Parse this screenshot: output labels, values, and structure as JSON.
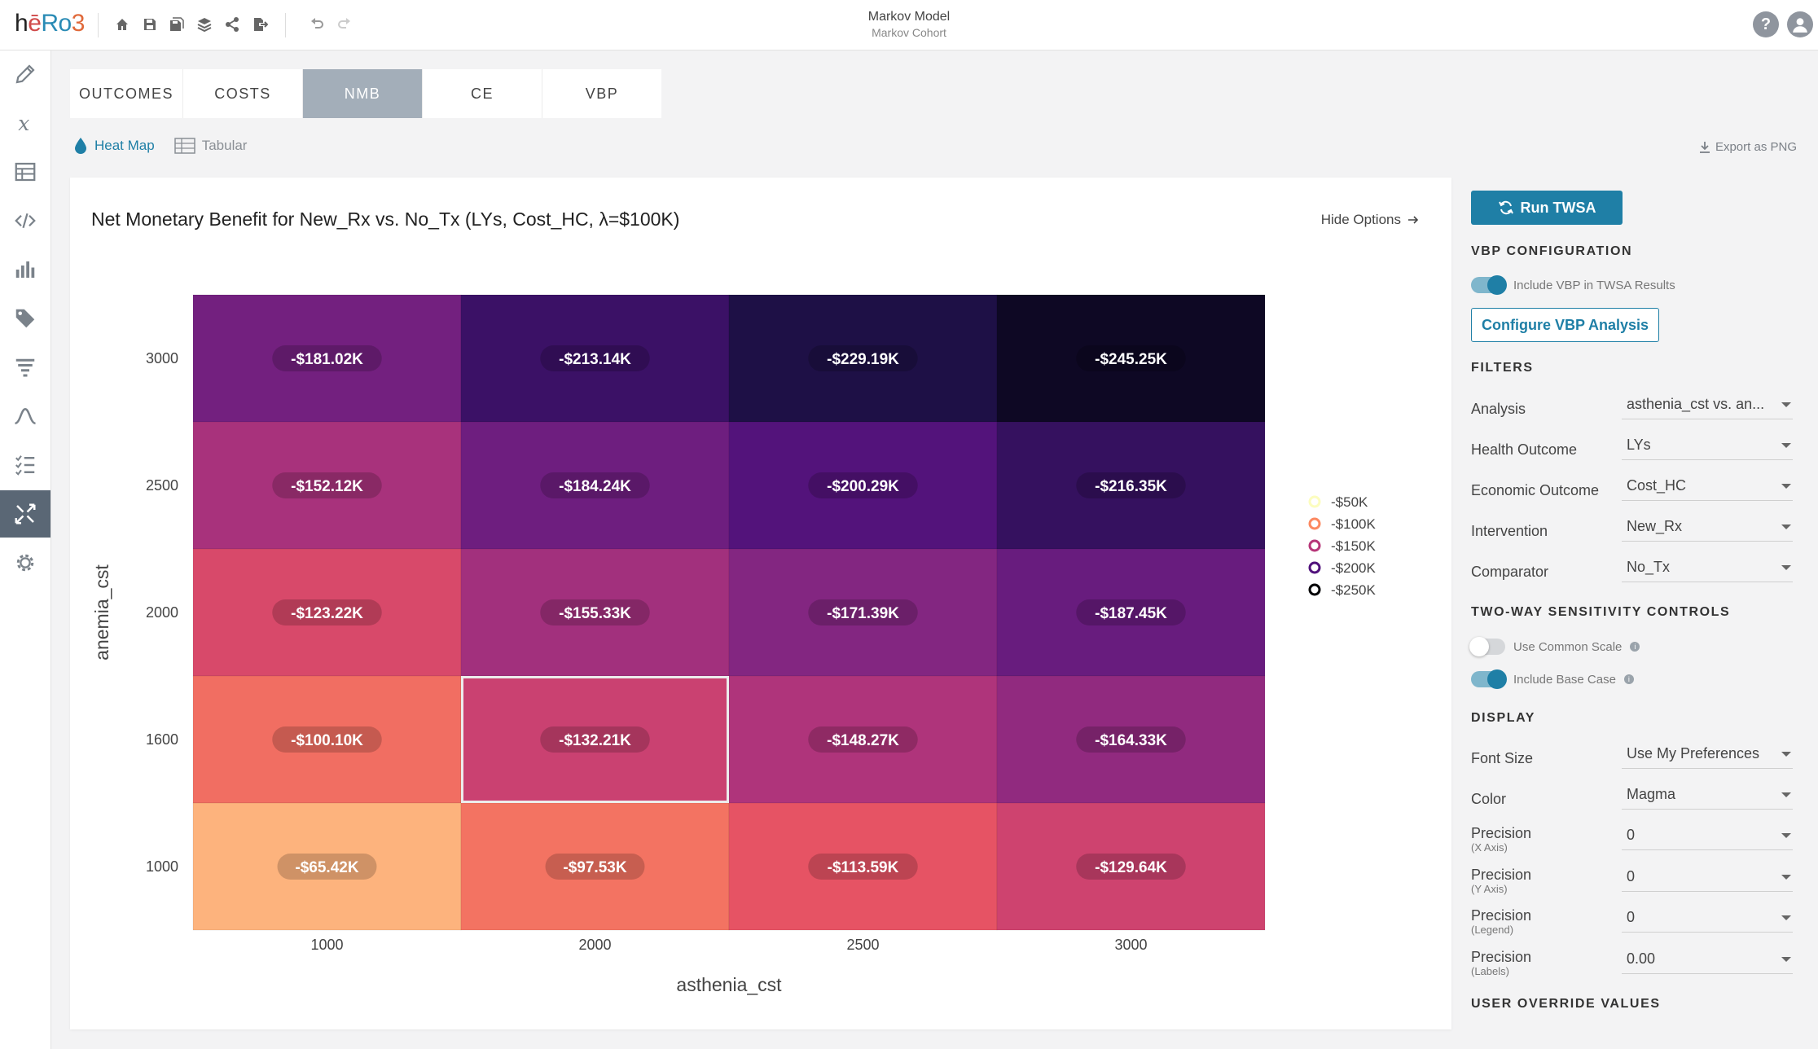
{
  "app": {
    "logo_parts": [
      "h",
      "ē",
      "R",
      "o",
      "3"
    ],
    "doc_title": "Markov Model",
    "doc_subtitle": "Markov Cohort"
  },
  "topbar_icons": [
    "home-icon",
    "save-icon",
    "save-as-icon",
    "layers-icon",
    "share-icon",
    "export-file-icon",
    "undo-icon",
    "redo-icon"
  ],
  "top_right_icons": [
    "help-icon",
    "user-icon"
  ],
  "sidebar_icons": [
    "pencil-icon",
    "variable-x-icon",
    "table-icon",
    "code-icon",
    "bar-chart-icon",
    "tag-icon",
    "filter-funnel-icon",
    "distribution-curve-icon",
    "checklist-icon",
    "sensitivity-arrows-icon",
    "settings-gear-icon"
  ],
  "tabs": [
    {
      "label": "OUTCOMES",
      "active": false
    },
    {
      "label": "COSTS",
      "active": false
    },
    {
      "label": "NMB",
      "active": true
    },
    {
      "label": "CE",
      "active": false
    },
    {
      "label": "VBP",
      "active": false
    }
  ],
  "view_switch": {
    "heatmap": "Heat Map",
    "tabular": "Tabular"
  },
  "export_label": "Export as PNG",
  "hide_options_label": "Hide Options",
  "chart_data": {
    "type": "heatmap",
    "title": "Net Monetary Benefit for New_Rx vs. No_Tx (LYs, Cost_HC, λ=$100K)",
    "xlabel": "asthenia_cst",
    "ylabel": "anemia_cst",
    "x_categories": [
      "1000",
      "2000",
      "2500",
      "3000"
    ],
    "y_categories": [
      "3000",
      "2500",
      "2000",
      "1600",
      "1000"
    ],
    "values": [
      [
        -181.02,
        -213.14,
        -229.19,
        -245.25
      ],
      [
        -152.12,
        -184.24,
        -200.29,
        -216.35
      ],
      [
        -123.22,
        -155.33,
        -171.39,
        -187.45
      ],
      [
        -100.1,
        -132.21,
        -148.27,
        -164.33
      ],
      [
        -65.42,
        -97.53,
        -113.59,
        -129.64
      ]
    ],
    "labels": [
      [
        "-$181.02K",
        "-$213.14K",
        "-$229.19K",
        "-$245.25K"
      ],
      [
        "-$152.12K",
        "-$184.24K",
        "-$200.29K",
        "-$216.35K"
      ],
      [
        "-$123.22K",
        "-$155.33K",
        "-$171.39K",
        "-$187.45K"
      ],
      [
        "-$100.10K",
        "-$132.21K",
        "-$148.27K",
        "-$164.33K"
      ],
      [
        "-$65.42K",
        "-$97.53K",
        "-$113.59K",
        "-$129.64K"
      ]
    ],
    "units": "thousand USD",
    "colormap": "Magma",
    "base_case": {
      "row": 3,
      "col": 1
    },
    "legend": {
      "position": "right",
      "entries": [
        {
          "label": "-$50K",
          "color": "#fcfdbf"
        },
        {
          "label": "-$100K",
          "color": "#fc8961"
        },
        {
          "label": "-$150K",
          "color": "#b73779"
        },
        {
          "label": "-$200K",
          "color": "#51127c"
        },
        {
          "label": "-$250K",
          "color": "#000004"
        }
      ]
    }
  },
  "panel": {
    "run_label": "Run TWSA",
    "vbp_title": "VBP CONFIGURATION",
    "include_vbp_label": "Include VBP in TWSA Results",
    "include_vbp_on": true,
    "configure_vbp_label": "Configure VBP Analysis",
    "filters_title": "FILTERS",
    "filters": [
      {
        "label": "Analysis",
        "value": "asthenia_cst vs. an..."
      },
      {
        "label": "Health Outcome",
        "value": "LYs"
      },
      {
        "label": "Economic Outcome",
        "value": "Cost_HC"
      },
      {
        "label": "Intervention",
        "value": "New_Rx"
      },
      {
        "label": "Comparator",
        "value": "No_Tx"
      }
    ],
    "twoway_title": "TWO-WAY SENSITIVITY CONTROLS",
    "common_scale_label": "Use Common Scale",
    "common_scale_on": false,
    "base_case_label": "Include Base Case",
    "base_case_on": true,
    "display_title": "DISPLAY",
    "display": [
      {
        "label": "Font Size",
        "sub": "",
        "value": "Use My Preferences"
      },
      {
        "label": "Color",
        "sub": "",
        "value": "Magma"
      },
      {
        "label": "Precision",
        "sub": "(X Axis)",
        "value": "0"
      },
      {
        "label": "Precision",
        "sub": "(Y Axis)",
        "value": "0"
      },
      {
        "label": "Precision",
        "sub": "(Legend)",
        "value": "0"
      },
      {
        "label": "Precision",
        "sub": "(Labels)",
        "value": "0.00"
      }
    ],
    "override_title": "USER OVERRIDE VALUES"
  }
}
